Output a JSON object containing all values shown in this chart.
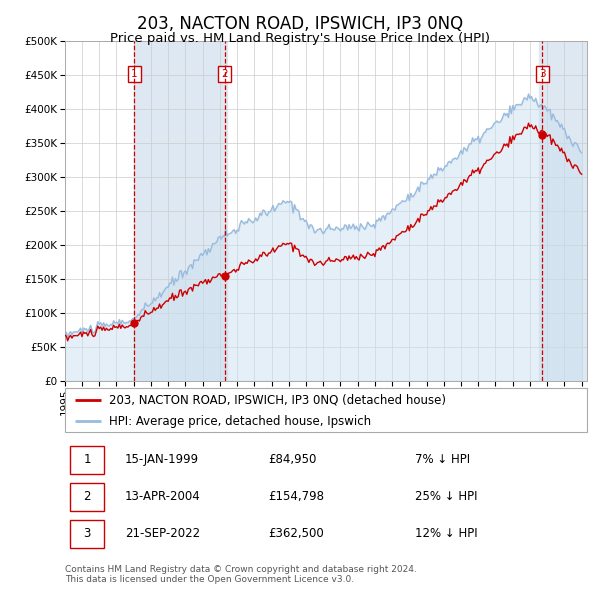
{
  "title": "203, NACTON ROAD, IPSWICH, IP3 0NQ",
  "subtitle": "Price paid vs. HM Land Registry's House Price Index (HPI)",
  "ylim": [
    0,
    500000
  ],
  "yticks": [
    0,
    50000,
    100000,
    150000,
    200000,
    250000,
    300000,
    350000,
    400000,
    450000,
    500000
  ],
  "ytick_labels": [
    "£0",
    "£50K",
    "£100K",
    "£150K",
    "£200K",
    "£250K",
    "£300K",
    "£350K",
    "£400K",
    "£450K",
    "£500K"
  ],
  "grid_color": "#cccccc",
  "hpi_line_color": "#99bbdd",
  "hpi_fill_color": "#cce0f0",
  "price_line_color": "#cc0000",
  "vline_color": "#cc0000",
  "vline_shade_color": "#dde8f2",
  "sales": [
    {
      "label": "1",
      "date_num": 1999.04,
      "price": 84950
    },
    {
      "label": "2",
      "date_num": 2004.28,
      "price": 154798
    },
    {
      "label": "3",
      "date_num": 2022.72,
      "price": 362500
    }
  ],
  "legend_entries": [
    "203, NACTON ROAD, IPSWICH, IP3 0NQ (detached house)",
    "HPI: Average price, detached house, Ipswich"
  ],
  "table_rows": [
    {
      "num": "1",
      "date": "15-JAN-1999",
      "price": "£84,950",
      "pct": "7% ↓ HPI"
    },
    {
      "num": "2",
      "date": "13-APR-2004",
      "price": "£154,798",
      "pct": "25% ↓ HPI"
    },
    {
      "num": "3",
      "date": "21-SEP-2022",
      "price": "£362,500",
      "pct": "12% ↓ HPI"
    }
  ],
  "footnote": "Contains HM Land Registry data © Crown copyright and database right 2024.\nThis data is licensed under the Open Government Licence v3.0.",
  "title_fontsize": 12,
  "subtitle_fontsize": 9.5,
  "tick_fontsize": 7.5,
  "legend_fontsize": 8.5,
  "table_fontsize": 8.5,
  "footnote_fontsize": 6.5
}
